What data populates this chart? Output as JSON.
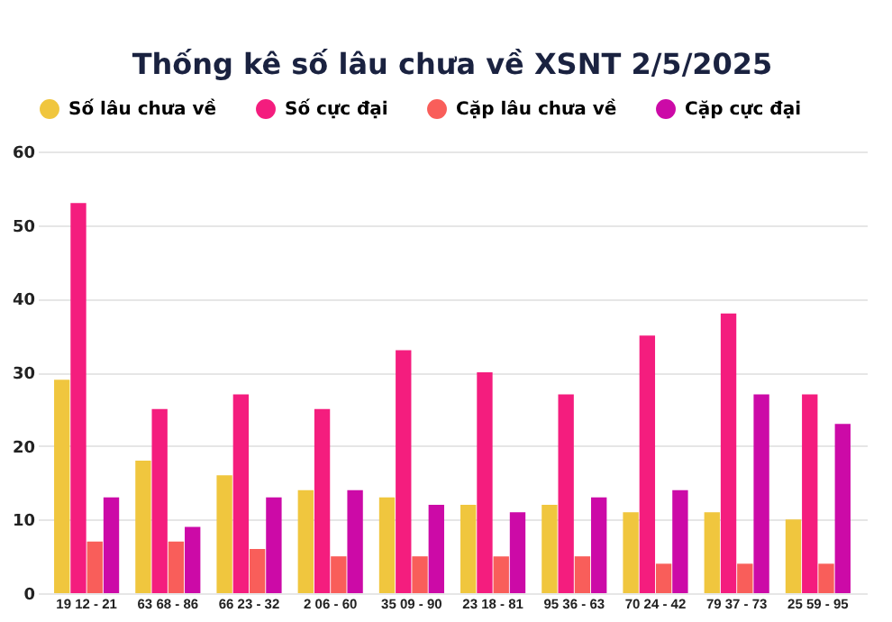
{
  "chart_data": {
    "type": "bar",
    "title": "Thống kê số lâu chưa về XSNT 2/5/2025",
    "categories": [
      "19 12 - 21",
      "63 68 - 86",
      "66 23 - 32",
      "2 06 - 60",
      "35 09 - 90",
      "23 18 - 81",
      "95 36 - 63",
      "70 24 - 42",
      "79 37 - 73",
      "25 59 - 95"
    ],
    "series": [
      {
        "name": "Số lâu chưa về",
        "color": "#f0c63e",
        "values": [
          29,
          18,
          16,
          14,
          13,
          12,
          12,
          11,
          11,
          10
        ]
      },
      {
        "name": "Số cực đại",
        "color": "#f41d7e",
        "values": [
          53,
          25,
          27,
          25,
          33,
          30,
          27,
          35,
          38,
          27
        ]
      },
      {
        "name": "Cặp lâu chưa về",
        "color": "#f95e5a",
        "values": [
          7,
          7,
          6,
          5,
          5,
          5,
          5,
          4,
          4,
          4
        ]
      },
      {
        "name": "Cặp cực đại",
        "color": "#cc0aa7",
        "values": [
          13,
          9,
          13,
          14,
          12,
          11,
          13,
          14,
          27,
          23
        ]
      }
    ],
    "ylim": [
      0,
      60
    ],
    "yticks": [
      0,
      10,
      20,
      30,
      40,
      50,
      60
    ],
    "grid": "y",
    "legend": "top"
  }
}
